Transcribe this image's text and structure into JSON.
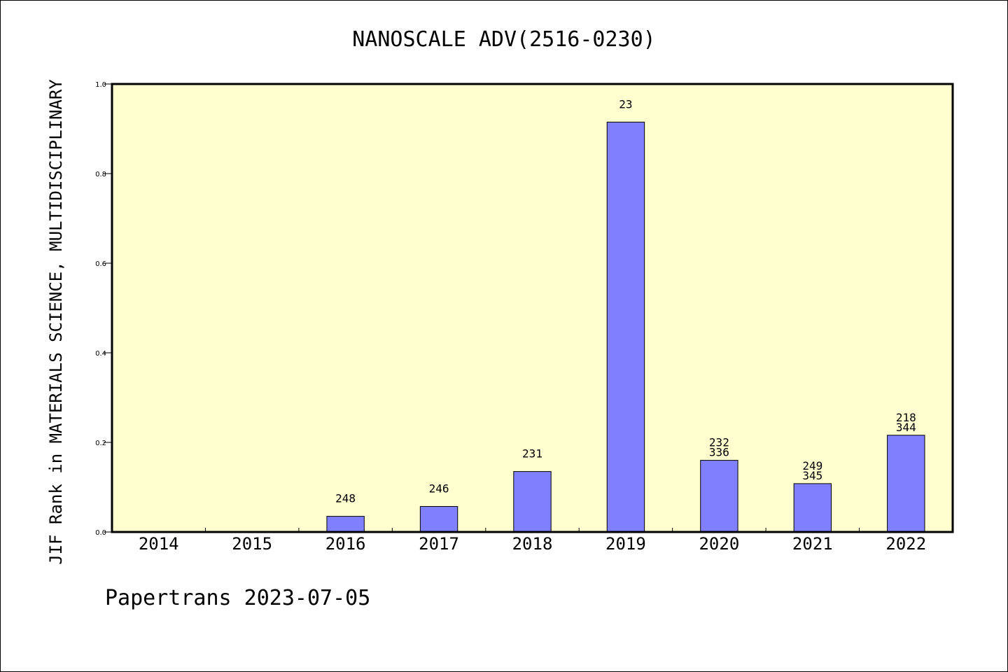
{
  "chart_data": {
    "type": "bar",
    "title": "NANOSCALE ADV(2516-0230)",
    "ylabel": "JIF Rank in MATERIALS SCIENCE, MULTIDISCIPLINARY",
    "xlabel": "",
    "ylim": [
      0,
      1.0
    ],
    "yticks": [
      "0.0",
      "0.2",
      "0.4",
      "0.6",
      "0.8",
      "1.0"
    ],
    "categories": [
      "2014",
      "2015",
      "2016",
      "2017",
      "2018",
      "2019",
      "2020",
      "2021",
      "2022"
    ],
    "values": [
      null,
      null,
      0.035,
      0.057,
      0.135,
      0.915,
      0.16,
      0.108,
      0.216
    ],
    "labels": [
      [],
      [],
      [
        "248"
      ],
      [
        "246"
      ],
      [
        "231"
      ],
      [
        "23"
      ],
      [
        "232",
        "336"
      ],
      [
        "249",
        "345"
      ],
      [
        "218",
        "344"
      ]
    ],
    "grid": false,
    "colors": {
      "bar": "#8080ff",
      "plot_bg": "#ffffd0"
    }
  },
  "footer": "Papertrans 2023-07-05"
}
